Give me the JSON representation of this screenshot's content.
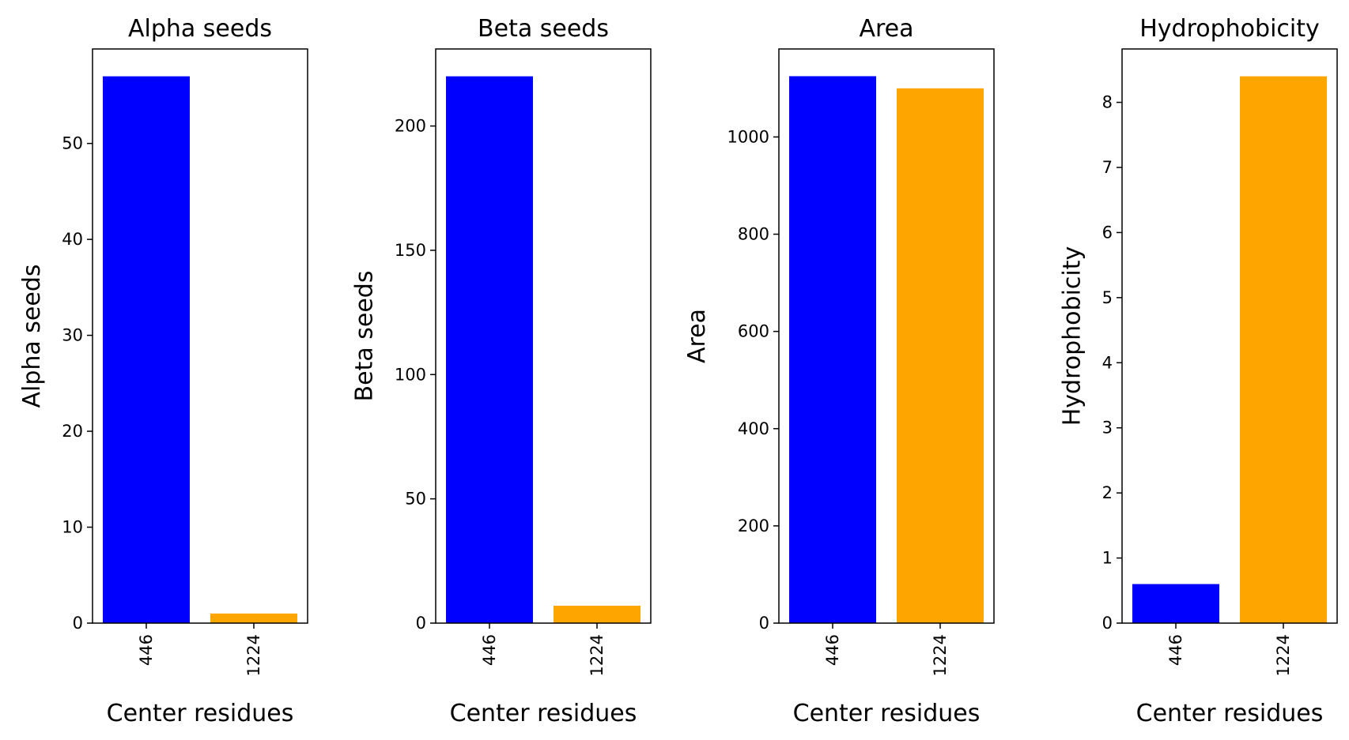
{
  "chart_data": [
    {
      "type": "bar",
      "title": "Alpha seeds",
      "xlabel": "Center residues",
      "ylabel": "Alpha seeds",
      "categories": [
        "446",
        "1224"
      ],
      "values": [
        57,
        1
      ],
      "colors": [
        "#0000ff",
        "#ffa500"
      ],
      "ylim": [
        0,
        59.85
      ],
      "yticks": [
        0,
        10,
        20,
        30,
        40,
        50
      ],
      "grid": false,
      "legend": "none",
      "x_tick_rotation": 90
    },
    {
      "type": "bar",
      "title": "Beta seeds",
      "xlabel": "Center residues",
      "ylabel": "Beta seeds",
      "categories": [
        "446",
        "1224"
      ],
      "values": [
        220,
        7
      ],
      "colors": [
        "#0000ff",
        "#ffa500"
      ],
      "ylim": [
        0,
        231
      ],
      "yticks": [
        0,
        50,
        100,
        150,
        200
      ],
      "grid": false,
      "legend": "none",
      "x_tick_rotation": 90
    },
    {
      "type": "bar",
      "title": "Area",
      "xlabel": "Center residues",
      "ylabel": "Area",
      "categories": [
        "446",
        "1224"
      ],
      "values": [
        1125,
        1100
      ],
      "colors": [
        "#0000ff",
        "#ffa500"
      ],
      "ylim": [
        0,
        1181
      ],
      "yticks": [
        0,
        200,
        400,
        600,
        800,
        1000
      ],
      "grid": false,
      "legend": "none",
      "x_tick_rotation": 90
    },
    {
      "type": "bar",
      "title": "Hydrophobicity",
      "xlabel": "Center residues",
      "ylabel": "Hydrophobicity",
      "categories": [
        "446",
        "1224"
      ],
      "values": [
        0.6,
        8.4
      ],
      "colors": [
        "#0000ff",
        "#ffa500"
      ],
      "ylim": [
        0,
        8.82
      ],
      "yticks": [
        0,
        1,
        2,
        3,
        4,
        5,
        6,
        7,
        8
      ],
      "grid": false,
      "legend": "none",
      "x_tick_rotation": 90
    }
  ]
}
